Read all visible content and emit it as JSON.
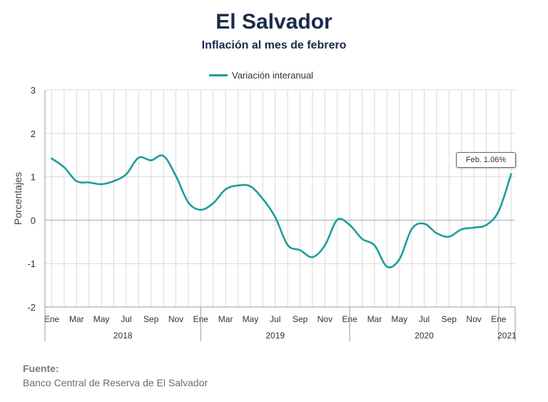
{
  "header": {
    "title": "El Salvador",
    "subtitle": "Inflación al mes de febrero"
  },
  "source": {
    "heading": "Fuente:",
    "text": "Banco Central de Reserva de El Salvador"
  },
  "colors": {
    "series": "#1e9e9a",
    "grid": "#d9d9d9",
    "axis": "#999999"
  },
  "chart_data": {
    "type": "line",
    "title": "El Salvador",
    "subtitle": "Inflación al mes de febrero",
    "ylabel": "Porcentajes",
    "xlabel": "",
    "ylim": [
      -2,
      3
    ],
    "yticks": [
      "-2",
      "-1",
      "0",
      "1",
      "2",
      "3"
    ],
    "grid": true,
    "legend_position": "top",
    "month_ticks": [
      "Ene",
      "Mar",
      "May",
      "Jul",
      "Sep",
      "Nov",
      "Ene",
      "Mar",
      "May",
      "Jul",
      "Sep",
      "Nov",
      "Ene",
      "Mar",
      "May",
      "Jul",
      "Sep",
      "Nov",
      "Ene"
    ],
    "years": [
      "2018",
      "2019",
      "2020",
      "2021"
    ],
    "x": [
      "2018-01",
      "2018-02",
      "2018-03",
      "2018-04",
      "2018-05",
      "2018-06",
      "2018-07",
      "2018-08",
      "2018-09",
      "2018-10",
      "2018-11",
      "2018-12",
      "2019-01",
      "2019-02",
      "2019-03",
      "2019-04",
      "2019-05",
      "2019-06",
      "2019-07",
      "2019-08",
      "2019-09",
      "2019-10",
      "2019-11",
      "2019-12",
      "2020-01",
      "2020-02",
      "2020-03",
      "2020-04",
      "2020-05",
      "2020-06",
      "2020-07",
      "2020-08",
      "2020-09",
      "2020-10",
      "2020-11",
      "2020-12",
      "2021-01",
      "2021-02"
    ],
    "series": [
      {
        "name": "Variación interanual",
        "values": [
          1.42,
          1.22,
          0.9,
          0.87,
          0.83,
          0.9,
          1.06,
          1.44,
          1.38,
          1.48,
          1.02,
          0.41,
          0.24,
          0.39,
          0.71,
          0.8,
          0.78,
          0.49,
          0.07,
          -0.57,
          -0.69,
          -0.85,
          -0.58,
          0.01,
          -0.11,
          -0.43,
          -0.58,
          -1.07,
          -0.9,
          -0.2,
          -0.08,
          -0.3,
          -0.38,
          -0.21,
          -0.17,
          -0.11,
          0.21,
          1.06
        ]
      }
    ],
    "annotation": "Feb. 1.06%"
  }
}
